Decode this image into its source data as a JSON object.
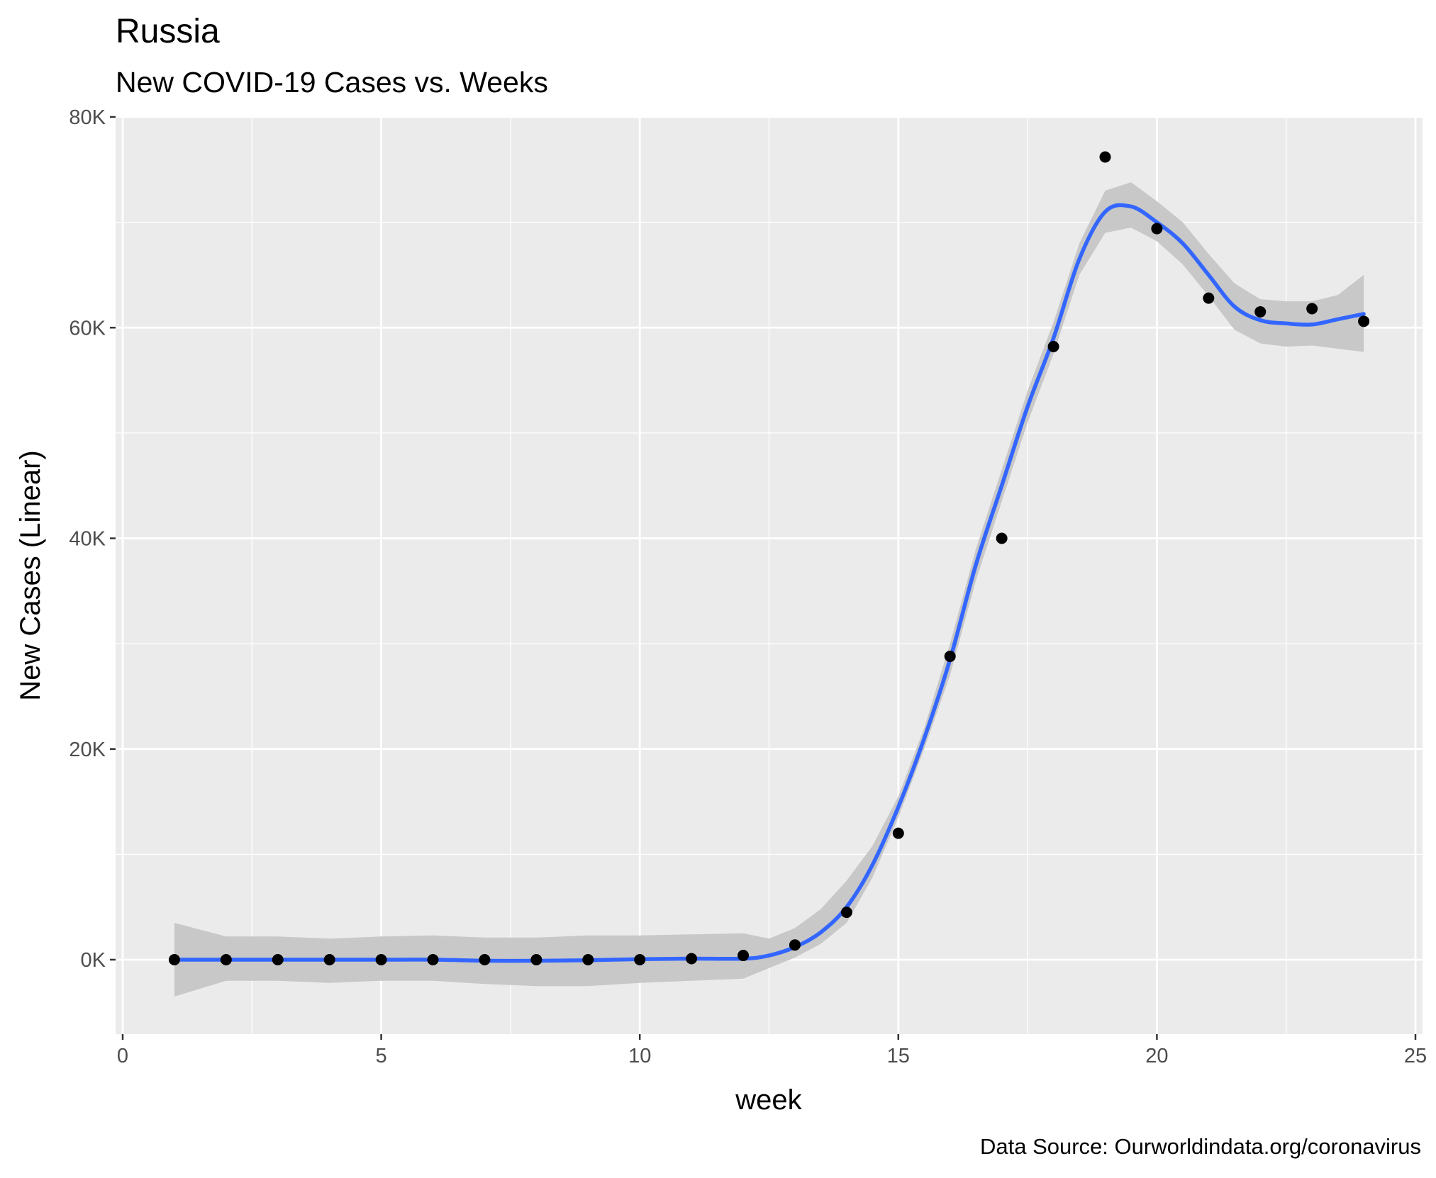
{
  "chart_data": {
    "type": "scatter",
    "title": "Russia",
    "subtitle": "New COVID-19 Cases vs. Weeks",
    "xlabel": "week",
    "ylabel": "New Cases (Linear)",
    "caption": "Data Source: Ourworldindata.org/coronavirus",
    "xlim": [
      0,
      25
    ],
    "ylim": [
      -7000,
      80000
    ],
    "grid": true,
    "x_ticks": [
      0,
      5,
      10,
      15,
      20,
      25
    ],
    "x_tick_labels": [
      "0",
      "5",
      "10",
      "15",
      "20",
      "25"
    ],
    "y_ticks": [
      0,
      20000,
      40000,
      60000,
      80000
    ],
    "y_tick_labels": [
      "0K",
      "20K",
      "40K",
      "60K",
      "80K"
    ],
    "series": [
      {
        "kind": "points",
        "color": "#000000",
        "x": [
          1,
          2,
          3,
          4,
          5,
          6,
          7,
          8,
          9,
          10,
          11,
          12,
          13,
          14,
          15,
          16,
          17,
          18,
          19,
          20,
          21,
          22,
          23,
          24
        ],
        "y": [
          0,
          0,
          0,
          0,
          0,
          0,
          0,
          0,
          0,
          0,
          100,
          400,
          1400,
          4500,
          12000,
          28800,
          40000,
          58200,
          76200,
          69400,
          62800,
          61500,
          61800,
          60600
        ]
      },
      {
        "kind": "smooth",
        "color": "#3366FF",
        "band_color": "#c8c8c8",
        "x": [
          1,
          2,
          3,
          4,
          5,
          6,
          7,
          8,
          9,
          10,
          11,
          12,
          12.5,
          13,
          13.5,
          14,
          14.5,
          15,
          15.5,
          16,
          16.5,
          17,
          17.5,
          18,
          18.5,
          19,
          19.5,
          20,
          20.5,
          21,
          21.5,
          22,
          22.5,
          23,
          23.5,
          24
        ],
        "y": [
          0,
          0,
          0,
          0,
          0,
          0,
          -100,
          -100,
          -50,
          50,
          100,
          100,
          400,
          1200,
          2600,
          5000,
          9000,
          14500,
          21000,
          28500,
          37500,
          45000,
          52500,
          59000,
          66500,
          71000,
          71500,
          70000,
          68000,
          65000,
          62000,
          60700,
          60400,
          60300,
          60800,
          61300
        ],
        "lower": [
          -3500,
          -2000,
          -2000,
          -2200,
          -2000,
          -2000,
          -2300,
          -2500,
          -2500,
          -2200,
          -2000,
          -1800,
          -800,
          200,
          1500,
          3500,
          7800,
          13500,
          20000,
          27000,
          36000,
          43500,
          51000,
          57500,
          65000,
          69000,
          69500,
          68200,
          66000,
          63000,
          59800,
          58500,
          58200,
          58300,
          58000,
          57700
        ],
        "upper": [
          3500,
          2200,
          2200,
          2000,
          2200,
          2300,
          2100,
          2100,
          2300,
          2300,
          2400,
          2500,
          2000,
          3000,
          4800,
          7500,
          10800,
          15500,
          22000,
          30000,
          39000,
          46500,
          54000,
          60500,
          68000,
          73000,
          73800,
          72000,
          70000,
          67000,
          64200,
          62700,
          62500,
          62500,
          63100,
          65000
        ]
      }
    ]
  }
}
